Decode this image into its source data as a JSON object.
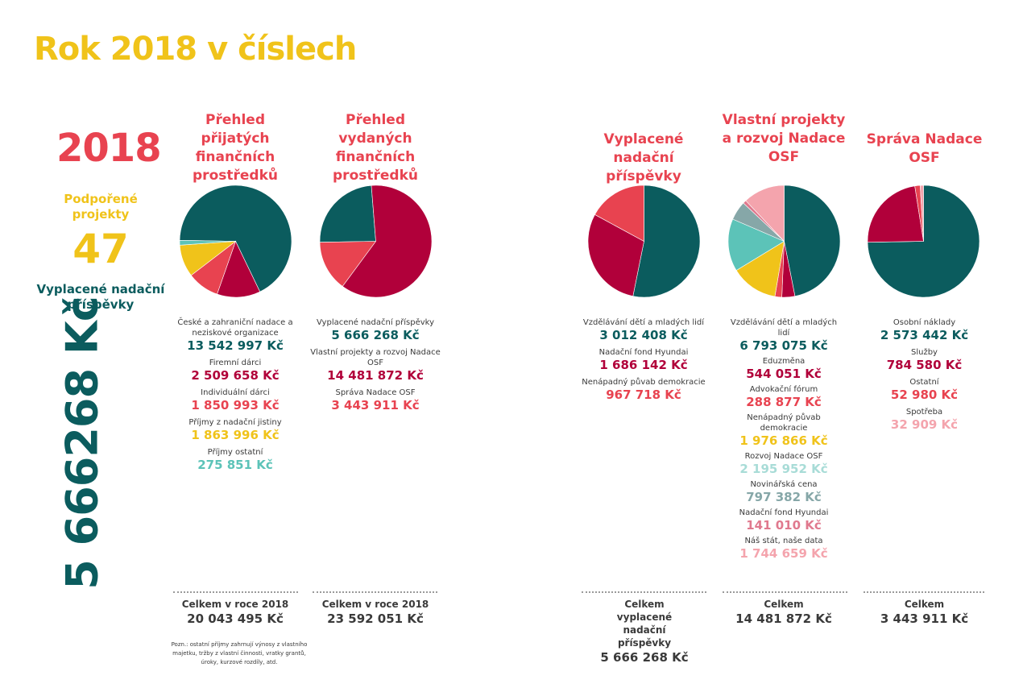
{
  "title": "Rok 2018 v číslech",
  "sidebar": {
    "year": "2018",
    "projects_label": "Podpořené projekty",
    "projects_value": "47",
    "paid_label": "Vyplacené nadační příspěvky",
    "paid_value": "5 666268 Kč"
  },
  "colors": {
    "teal": "#0b5c5e",
    "crimson": "#b1003a",
    "red": "#e84350",
    "yellow": "#f0c31a",
    "turquoise": "#5cc3b8",
    "light_turquoise": "#a8dcd7",
    "grey_teal": "#86a7a8",
    "pink": "#e0798e",
    "light_pink": "#f4a4ad"
  },
  "chart_data": [
    {
      "type": "pie",
      "title": "Přehled přijatých finančních prostředků",
      "slices": [
        {
          "label": "České a zahraniční nadace a neziskové organizace",
          "value": 13542997,
          "display": "13 542 997 Kč",
          "color": "#0b5c5e"
        },
        {
          "label": "Firemní dárci",
          "value": 2509658,
          "display": "2 509 658 Kč",
          "color": "#b1003a"
        },
        {
          "label": "Individuální dárci",
          "value": 1850993,
          "display": "1 850 993 Kč",
          "color": "#e84350"
        },
        {
          "label": "Příjmy z nadační jistiny",
          "value": 1863996,
          "display": "1 863 996 Kč",
          "color": "#f0c31a"
        },
        {
          "label": "Příjmy ostatní",
          "value": 275851,
          "display": "275 851 Kč",
          "color": "#5cc3b8"
        }
      ],
      "total_label": "Celkem v roce 2018",
      "total_value": "20 043 495 Kč"
    },
    {
      "type": "pie",
      "title": "Přehled vydaných finančních prostředků",
      "slices": [
        {
          "label": "Vyplacené nadační příspěvky",
          "value": 5666268,
          "display": "5 666 268 Kč",
          "color": "#0b5c5e"
        },
        {
          "label": "Vlastní projekty a rozvoj Nadace OSF",
          "value": 14481872,
          "display": "14 481 872 Kč",
          "color": "#b1003a"
        },
        {
          "label": "Správa Nadace OSF",
          "value": 3443911,
          "display": "3 443 911 Kč",
          "color": "#e84350"
        }
      ],
      "total_label": "Celkem v roce 2018",
      "total_value": "23 592 051 Kč"
    },
    {
      "type": "pie",
      "title": "Vyplacené nadační příspěvky",
      "slices": [
        {
          "label": "Vzdělávání dětí a mladých lidí",
          "value": 3012408,
          "display": "3 012 408 Kč",
          "color": "#0b5c5e"
        },
        {
          "label": "Nadační fond Hyundai",
          "value": 1686142,
          "display": "1 686 142 Kč",
          "color": "#b1003a"
        },
        {
          "label": "Nenápadný půvab demokracie",
          "value": 967718,
          "display": "967 718 Kč",
          "color": "#e84350"
        }
      ],
      "total_label": "Celkem vyplacené nadační příspěvky",
      "total_value": "5 666 268 Kč"
    },
    {
      "type": "pie",
      "title": "Vlastní projekty a rozvoj Nadace OSF",
      "slices": [
        {
          "label": "Vzdělávání dětí a mladých lidí",
          "value": 6793075,
          "display": "6 793 075 Kč",
          "color": "#0b5c5e"
        },
        {
          "label": "Eduzměna",
          "value": 544051,
          "display": "544 051 Kč",
          "color": "#b1003a"
        },
        {
          "label": "Advokační fórum",
          "value": 288877,
          "display": "288 877 Kč",
          "color": "#e84350"
        },
        {
          "label": "Nenápadný půvab demokracie",
          "value": 1976866,
          "display": "1 976 866 Kč",
          "color": "#f0c31a"
        },
        {
          "label": "Rozvoj Nadace OSF",
          "value": 2195952,
          "display": "2 195 952 Kč",
          "color": "#5cc3b8"
        },
        {
          "label": "Novinářská cena",
          "value": 797382,
          "display": "797 382 Kč",
          "color": "#86a7a8"
        },
        {
          "label": "Nadační fond Hyundai",
          "value": 141010,
          "display": "141 010 Kč",
          "color": "#e0798e"
        },
        {
          "label": "Náš stát, naše data",
          "value": 1744659,
          "display": "1 744 659 Kč",
          "color": "#f4a4ad"
        }
      ],
      "total_label": "Celkem",
      "total_value": "14 481 872 Kč"
    },
    {
      "type": "pie",
      "title": "Správa Nadace OSF",
      "slices": [
        {
          "label": "Osobní náklady",
          "value": 2573442,
          "display": "2 573 442 Kč",
          "color": "#0b5c5e"
        },
        {
          "label": "Služby",
          "value": 784580,
          "display": "784 580 Kč",
          "color": "#b1003a"
        },
        {
          "label": "Ostatní",
          "value": 52980,
          "display": "52 980 Kč",
          "color": "#e84350"
        },
        {
          "label": "Spotřeba",
          "value": 32909,
          "display": "32 909 Kč",
          "color": "#f4a4ad"
        }
      ],
      "total_label": "Celkem",
      "total_value": "3 443 911 Kč"
    }
  ],
  "note": "Pozn.: ostatní příjmy zahrnují výnosy z vlastního majetku, tržby z vlastní činnosti, vratky grantů, úroky, kurzové rozdíly, atd."
}
